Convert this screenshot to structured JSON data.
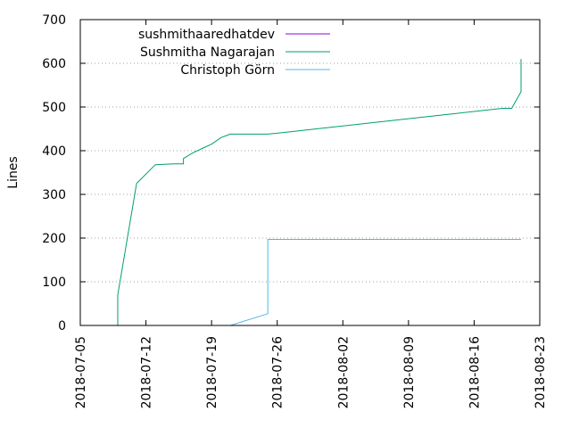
{
  "chart_data": {
    "type": "line",
    "title": "",
    "xlabel": "",
    "ylabel": "Lines",
    "x_type": "date",
    "xlim": [
      "2018-07-05",
      "2018-08-23"
    ],
    "ylim": [
      0,
      700
    ],
    "x_ticks": [
      "2018-07-05",
      "2018-07-12",
      "2018-07-19",
      "2018-07-26",
      "2018-08-02",
      "2018-08-09",
      "2018-08-16",
      "2018-08-23"
    ],
    "y_ticks": [
      0,
      100,
      200,
      300,
      400,
      500,
      600,
      700
    ],
    "grid": true,
    "legend_position": "top-left",
    "series": [
      {
        "name": "sushmithaaredhatdev",
        "color": "#9400d3",
        "points": []
      },
      {
        "name": "Sushmitha Nagarajan",
        "color": "#009e73",
        "points": [
          [
            "2018-07-09",
            0
          ],
          [
            "2018-07-09",
            70
          ],
          [
            "2018-07-11",
            325
          ],
          [
            "2018-07-13",
            368
          ],
          [
            "2018-07-15",
            370
          ],
          [
            "2018-07-16",
            370
          ],
          [
            "2018-07-16",
            382
          ],
          [
            "2018-07-17",
            395
          ],
          [
            "2018-07-18",
            405
          ],
          [
            "2018-07-19",
            415
          ],
          [
            "2018-07-20",
            430
          ],
          [
            "2018-07-21",
            438
          ],
          [
            "2018-07-25",
            438
          ],
          [
            "2018-07-26",
            440
          ],
          [
            "2018-08-19",
            497
          ],
          [
            "2018-08-20",
            497
          ],
          [
            "2018-08-21",
            535
          ],
          [
            "2018-08-21",
            610
          ]
        ]
      },
      {
        "name": "Christoph Görn",
        "color": "#56b4e9",
        "points": [
          [
            "2018-07-21",
            0
          ],
          [
            "2018-07-25",
            27
          ],
          [
            "2018-07-25",
            197
          ],
          [
            "2018-08-21",
            197
          ]
        ]
      }
    ]
  }
}
